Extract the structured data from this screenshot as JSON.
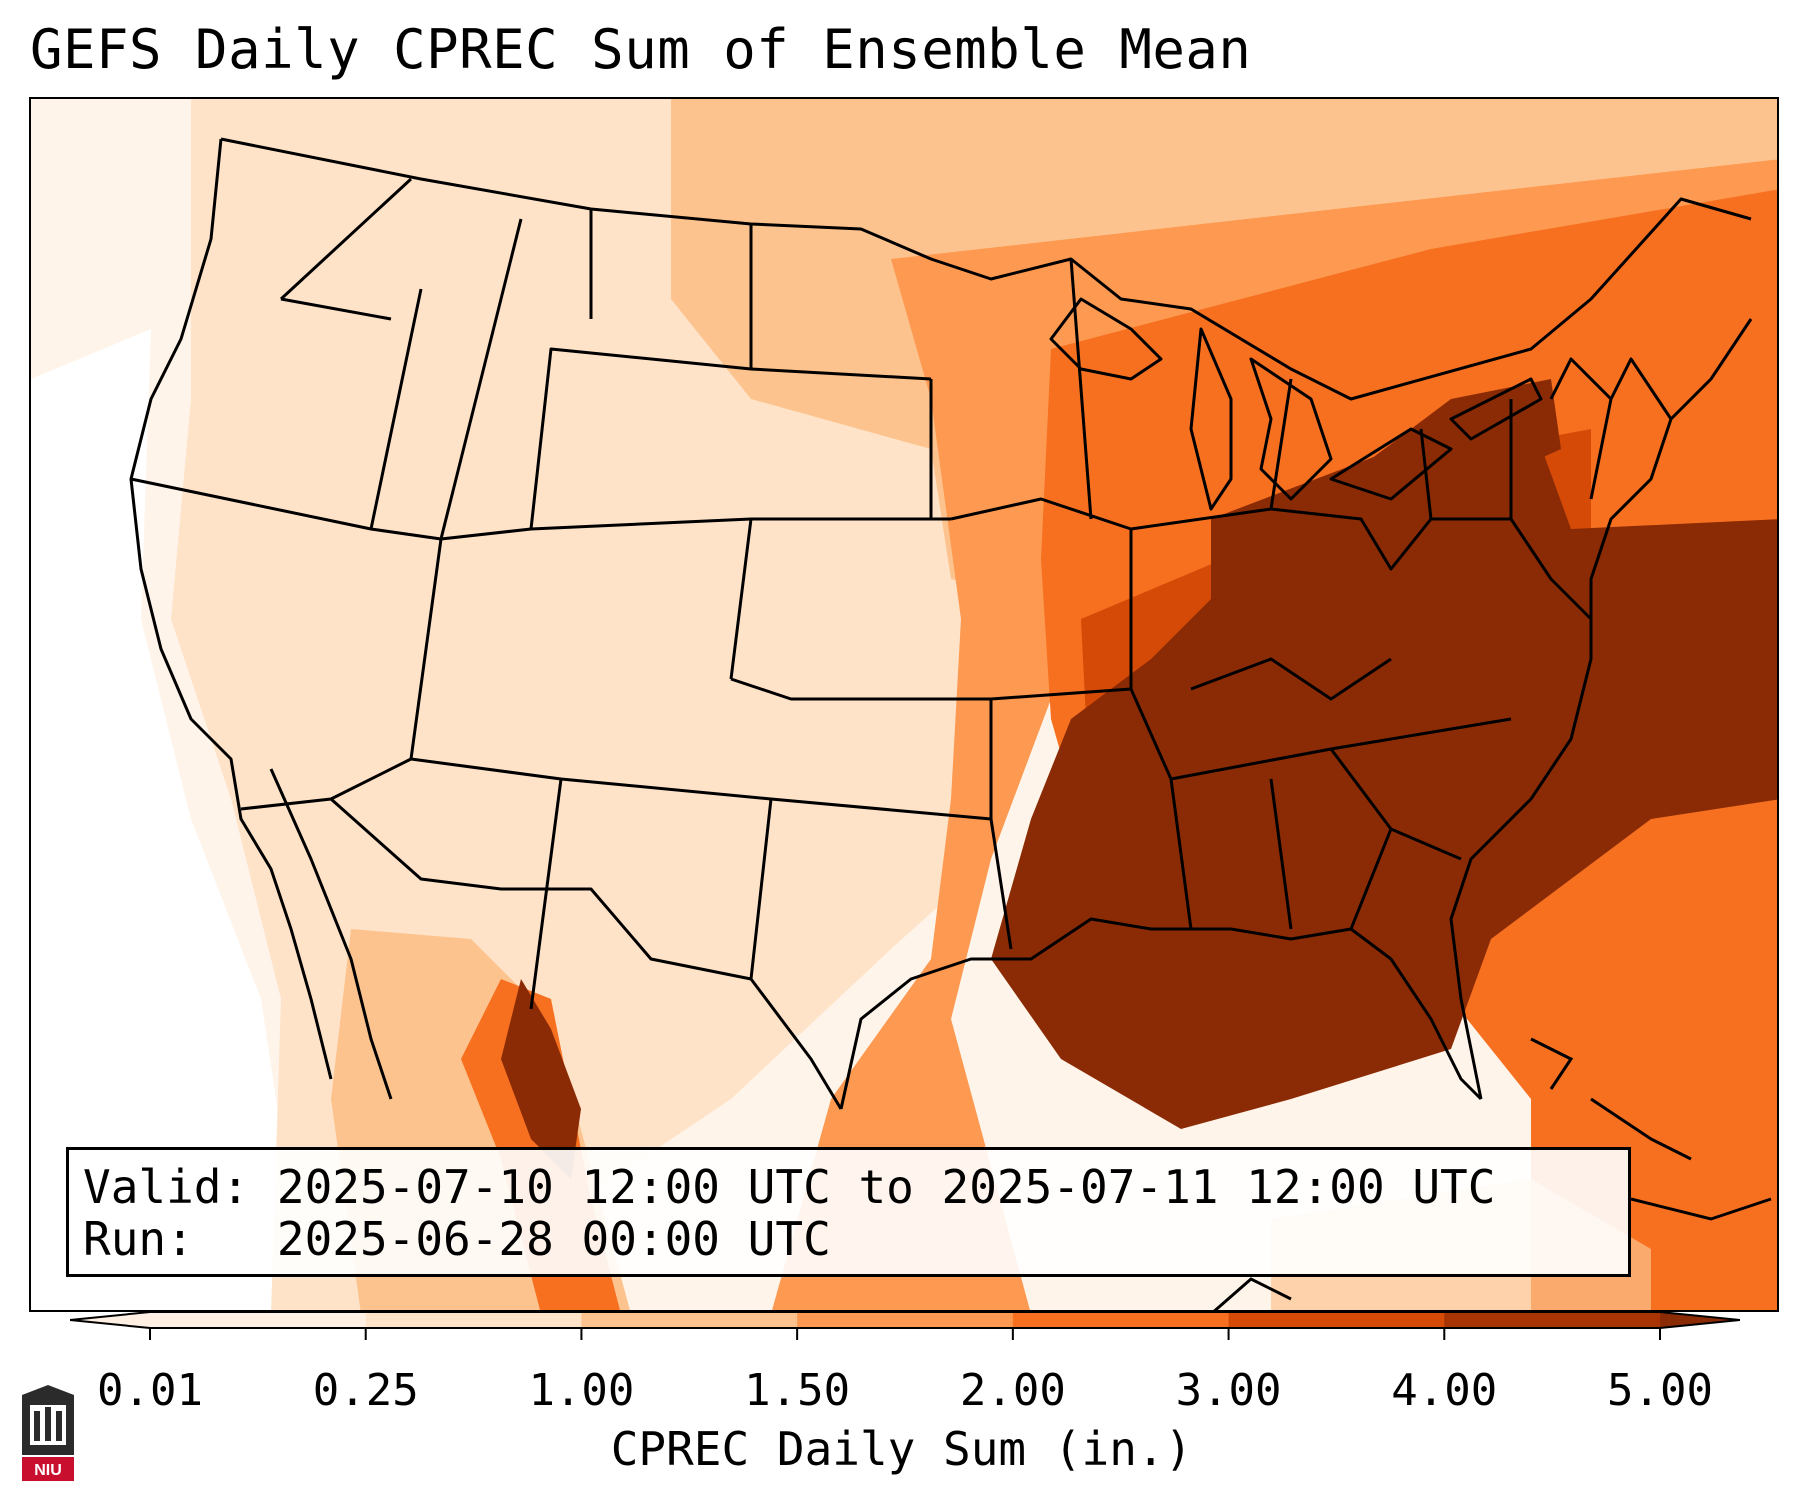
{
  "title": "GEFS Daily CPREC Sum of Ensemble Mean",
  "valid_label": "Valid:",
  "valid_value": "2025-07-10 12:00 UTC to 2025-07-11 12:00 UTC",
  "run_label": "Run:",
  "run_value": "2025-06-28 00:00 UTC",
  "colorbar": {
    "label": "CPREC Daily Sum (in.)",
    "ticks": [
      "0.01",
      "0.25",
      "1.00",
      "1.50",
      "2.00",
      "3.00",
      "4.00",
      "5.00"
    ],
    "colors": [
      "#fff0e3",
      "#fee3c9",
      "#fdc38e",
      "#fd9950",
      "#f67020",
      "#d64a07",
      "#a83404",
      "#8b2b05"
    ]
  },
  "logo": {
    "text": "NIU",
    "colors": [
      "#2b2b2b",
      "#c8102e"
    ]
  },
  "map": {
    "region": "Continental United States",
    "precip_colors": {
      "trace": "#fff4ea",
      "light": "#fee3c9",
      "moderate": "#fdc38e",
      "heavy": "#fd9950",
      "very_heavy": "#f67020",
      "extreme": "#d64a07",
      "max": "#8b2b05"
    }
  }
}
